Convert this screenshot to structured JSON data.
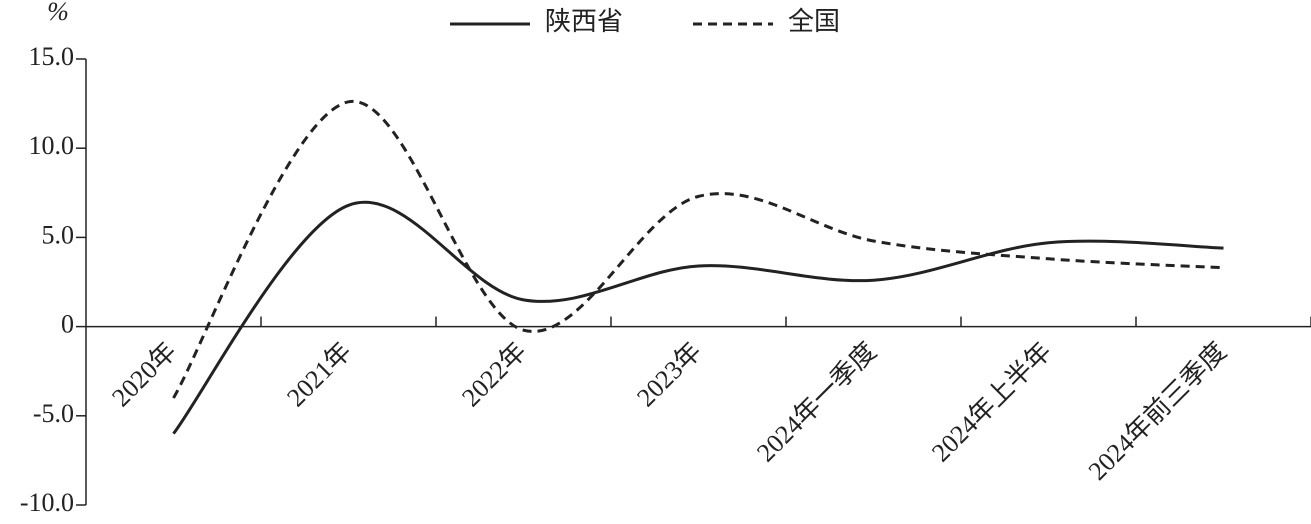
{
  "chart_data": {
    "type": "line",
    "y_unit": "%",
    "categories": [
      "2020年",
      "2021年",
      "2022年",
      "2023年",
      "2024年一季度",
      "2024年上半年",
      "2024年前三季度"
    ],
    "series": [
      {
        "name": "陕西省",
        "color": "#222222",
        "linestyle": "solid",
        "values": [
          -6.0,
          6.8,
          1.5,
          3.4,
          2.6,
          4.7,
          4.4
        ]
      },
      {
        "name": "全国",
        "color": "#222222",
        "linestyle": "dashed",
        "values": [
          -4.0,
          12.6,
          -0.2,
          7.3,
          4.8,
          3.8,
          3.3
        ]
      }
    ],
    "ylim": [
      -10,
      15
    ],
    "yticks": [
      {
        "value": -10,
        "label": "-10.0"
      },
      {
        "value": -5,
        "label": "-5.0"
      },
      0,
      {
        "value": 5,
        "label": "5.0"
      },
      {
        "value": 10,
        "label": "10.0"
      },
      {
        "value": 15,
        "label": "15.0"
      }
    ],
    "legend": "top"
  }
}
